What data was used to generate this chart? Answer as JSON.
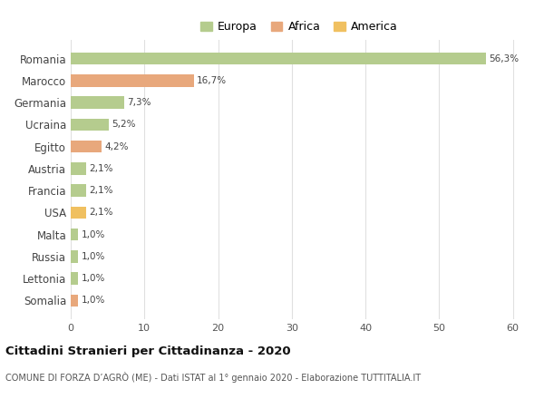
{
  "categories": [
    "Romania",
    "Marocco",
    "Germania",
    "Ucraina",
    "Egitto",
    "Austria",
    "Francia",
    "USA",
    "Malta",
    "Russia",
    "Lettonia",
    "Somalia"
  ],
  "values": [
    56.3,
    16.7,
    7.3,
    5.2,
    4.2,
    2.1,
    2.1,
    2.1,
    1.0,
    1.0,
    1.0,
    1.0
  ],
  "labels": [
    "56,3%",
    "16,7%",
    "7,3%",
    "5,2%",
    "4,2%",
    "2,1%",
    "2,1%",
    "2,1%",
    "1,0%",
    "1,0%",
    "1,0%",
    "1,0%"
  ],
  "colors": [
    "#b5cc8e",
    "#e8a87c",
    "#b5cc8e",
    "#b5cc8e",
    "#e8a87c",
    "#b5cc8e",
    "#b5cc8e",
    "#f0c060",
    "#b5cc8e",
    "#b5cc8e",
    "#b5cc8e",
    "#e8a87c"
  ],
  "legend_labels": [
    "Europa",
    "Africa",
    "America"
  ],
  "legend_colors": [
    "#b5cc8e",
    "#e8a87c",
    "#f0c060"
  ],
  "xlim": [
    0,
    62
  ],
  "xticks": [
    0,
    10,
    20,
    30,
    40,
    50,
    60
  ],
  "title": "Cittadini Stranieri per Cittadinanza - 2020",
  "subtitle": "COMUNE DI FORZA D’AGRÒ (ME) - Dati ISTAT al 1° gennaio 2020 - Elaborazione TUTTITALIA.IT",
  "background_color": "#ffffff",
  "grid_color": "#e0e0e0",
  "bar_height": 0.55
}
